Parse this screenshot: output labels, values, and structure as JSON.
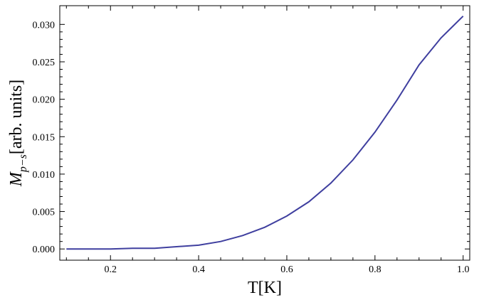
{
  "chart_data": {
    "type": "line",
    "title": "",
    "xlabel": "T[K]",
    "ylabel_main": "M",
    "ylabel_sub": "p−s",
    "ylabel_units": "[arb. units]",
    "xlim": [
      0.085,
      1.015
    ],
    "ylim": [
      -0.0015,
      0.0325
    ],
    "x_ticks": [
      {
        "value": 0.2,
        "label": "0.2"
      },
      {
        "value": 0.4,
        "label": "0.4"
      },
      {
        "value": 0.6,
        "label": "0.6"
      },
      {
        "value": 0.8,
        "label": "0.8"
      },
      {
        "value": 1.0,
        "label": "1.0"
      }
    ],
    "y_ticks": [
      {
        "value": 0.0,
        "label": "0.000"
      },
      {
        "value": 0.005,
        "label": "0.005"
      },
      {
        "value": 0.01,
        "label": "0.010"
      },
      {
        "value": 0.015,
        "label": "0.015"
      },
      {
        "value": 0.02,
        "label": "0.020"
      },
      {
        "value": 0.025,
        "label": "0.025"
      },
      {
        "value": 0.03,
        "label": "0.030"
      }
    ],
    "grid": false,
    "series": [
      {
        "color": "#3f3f9f",
        "x": [
          0.1,
          0.15,
          0.2,
          0.25,
          0.3,
          0.35,
          0.4,
          0.45,
          0.5,
          0.55,
          0.6,
          0.65,
          0.7,
          0.75,
          0.8,
          0.85,
          0.9,
          0.95,
          1.0
        ],
        "y": [
          0.0,
          0.0,
          0.0,
          0.0001,
          0.0001,
          0.0003,
          0.0005,
          0.001,
          0.0018,
          0.0029,
          0.0044,
          0.0063,
          0.0088,
          0.0119,
          0.0156,
          0.0199,
          0.0246,
          0.0282,
          0.0311
        ]
      }
    ]
  }
}
